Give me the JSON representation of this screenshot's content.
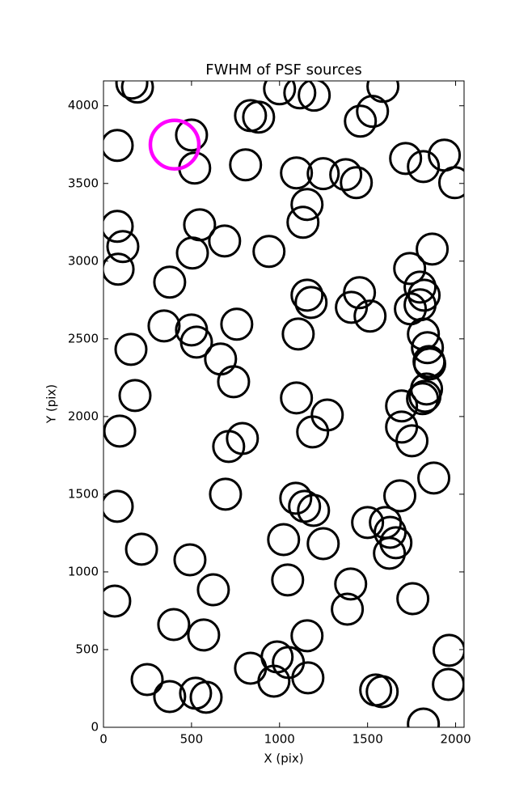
{
  "chart_data": {
    "type": "scatter",
    "title": "FWHM of PSF sources",
    "x_label": "X (pix)",
    "y_label": "Y (pix)",
    "xlim": [
      0,
      2048
    ],
    "ylim": [
      0,
      4160
    ],
    "xticks": [
      0,
      500,
      1000,
      1500,
      2000
    ],
    "yticks": [
      0,
      500,
      1000,
      1500,
      2000,
      2500,
      3000,
      3500,
      4000
    ],
    "series": [
      {
        "color": "#000000",
        "marker_radius": 19,
        "x": [
          161,
          193,
          78,
          500,
          518,
          835,
          881,
          1000,
          1115,
          1197,
          807,
          1096,
          1248,
          1376,
          1436,
          1459,
          1528,
          1587,
          1716,
          1817,
          1936,
          1995,
          1156,
          1133,
          78,
          110,
          83,
          546,
          505,
          688,
          940,
          376,
          1867,
          1739,
          1798,
          1821,
          1798,
          1743,
          1454,
          1408,
          1514,
          1156,
          1179,
          344,
          500,
          528,
          757,
          156,
          1106,
          665,
          739,
          1817,
          1840,
          1849,
          1853,
          1835,
          1826,
          1812,
          179,
          1096,
          1271,
          1188,
          1693,
          1693,
          1752,
          92,
          711,
          789,
          1876,
          1683,
          693,
          78,
          1092,
          1142,
          1193,
          1500,
          1601,
          1628,
          1661,
          1624,
          1023,
          1248,
          216,
          491,
          1046,
          624,
          1404,
          1385,
          1757,
          64,
          399,
          569,
          1156,
          986,
          1050,
          835,
          968,
          1161,
          248,
          376,
          523,
          583,
          1546,
          1583,
          1963,
          1959,
          1817
        ],
        "y": [
          4146,
          4120,
          3745,
          3812,
          3599,
          3937,
          3927,
          4109,
          4083,
          4068,
          3620,
          3568,
          3563,
          3557,
          3505,
          3901,
          3964,
          4125,
          3661,
          3609,
          3682,
          3505,
          3365,
          3250,
          3224,
          3094,
          2948,
          3234,
          3052,
          3130,
          3063,
          2865,
          3078,
          2953,
          2833,
          2781,
          2719,
          2693,
          2797,
          2703,
          2646,
          2781,
          2734,
          2583,
          2557,
          2479,
          2594,
          2432,
          2531,
          2370,
          2224,
          2531,
          2443,
          2354,
          2339,
          2177,
          2130,
          2115,
          2135,
          2120,
          2010,
          1901,
          2068,
          1932,
          1844,
          1906,
          1807,
          1859,
          1604,
          1490,
          1500,
          1422,
          1474,
          1422,
          1396,
          1318,
          1318,
          1255,
          1188,
          1120,
          1208,
          1182,
          1146,
          1078,
          948,
          885,
          922,
          760,
          828,
          812,
          661,
          594,
          589,
          453,
          417,
          380,
          297,
          318,
          307,
          198,
          219,
          193,
          240,
          229,
          495,
          276,
          21
        ]
      },
      {
        "color": "#ff00ff",
        "marker_radius": 30,
        "x": [
          404
        ],
        "y": [
          3750
        ]
      }
    ]
  }
}
